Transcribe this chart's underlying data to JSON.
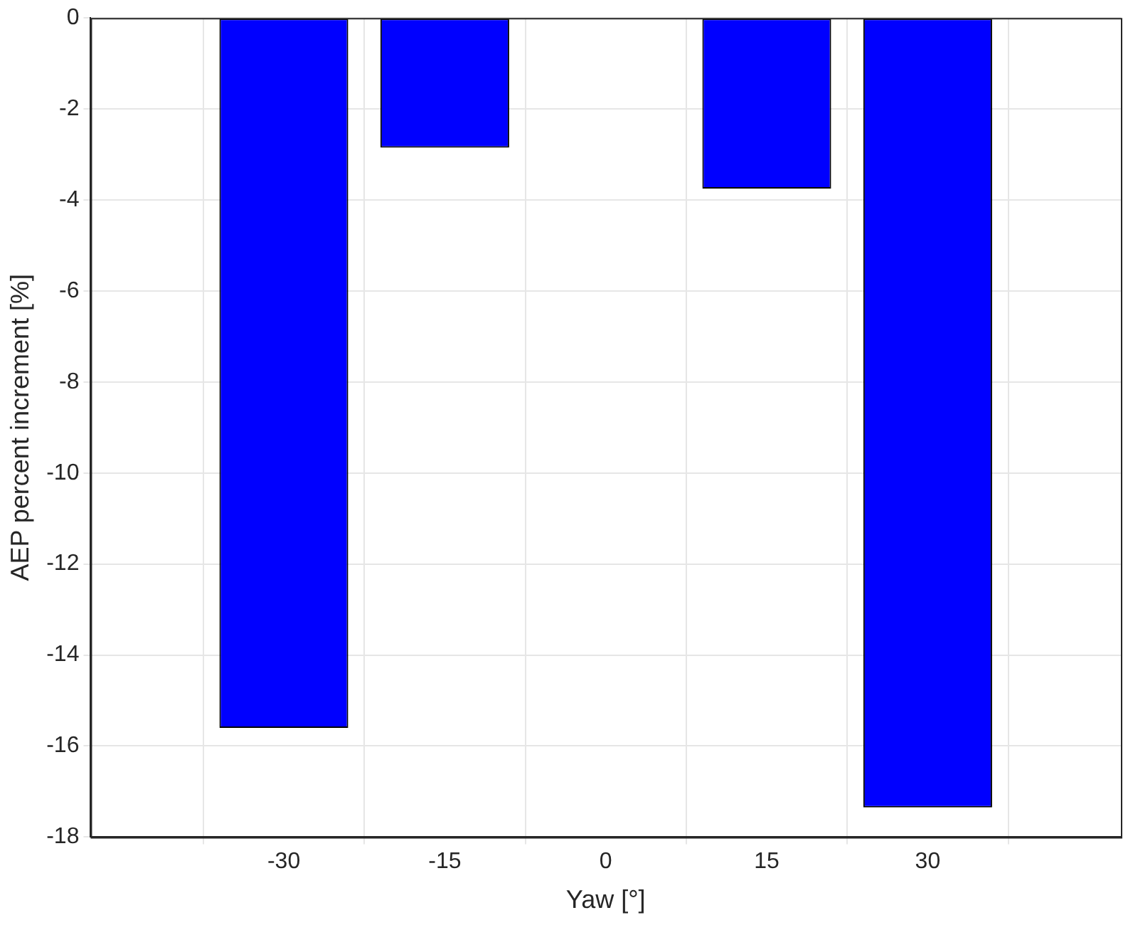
{
  "chart_data": {
    "type": "bar",
    "xlabel": "Yaw [°]",
    "ylabel": "AEP percent increment [%]",
    "x": [
      -30,
      -15,
      0,
      15,
      30
    ],
    "values": [
      -15.6,
      -2.85,
      0,
      -3.75,
      -17.35
    ],
    "color": "#0000ff",
    "xlim": [
      -48,
      48
    ],
    "xticks": [
      -30,
      -15,
      0,
      15,
      30
    ],
    "ylim": [
      -18,
      0
    ],
    "yticks": [
      -18,
      -16,
      -14,
      -12,
      -10,
      -8,
      -6,
      -4,
      -2,
      0
    ],
    "grid": true,
    "legend": false
  }
}
